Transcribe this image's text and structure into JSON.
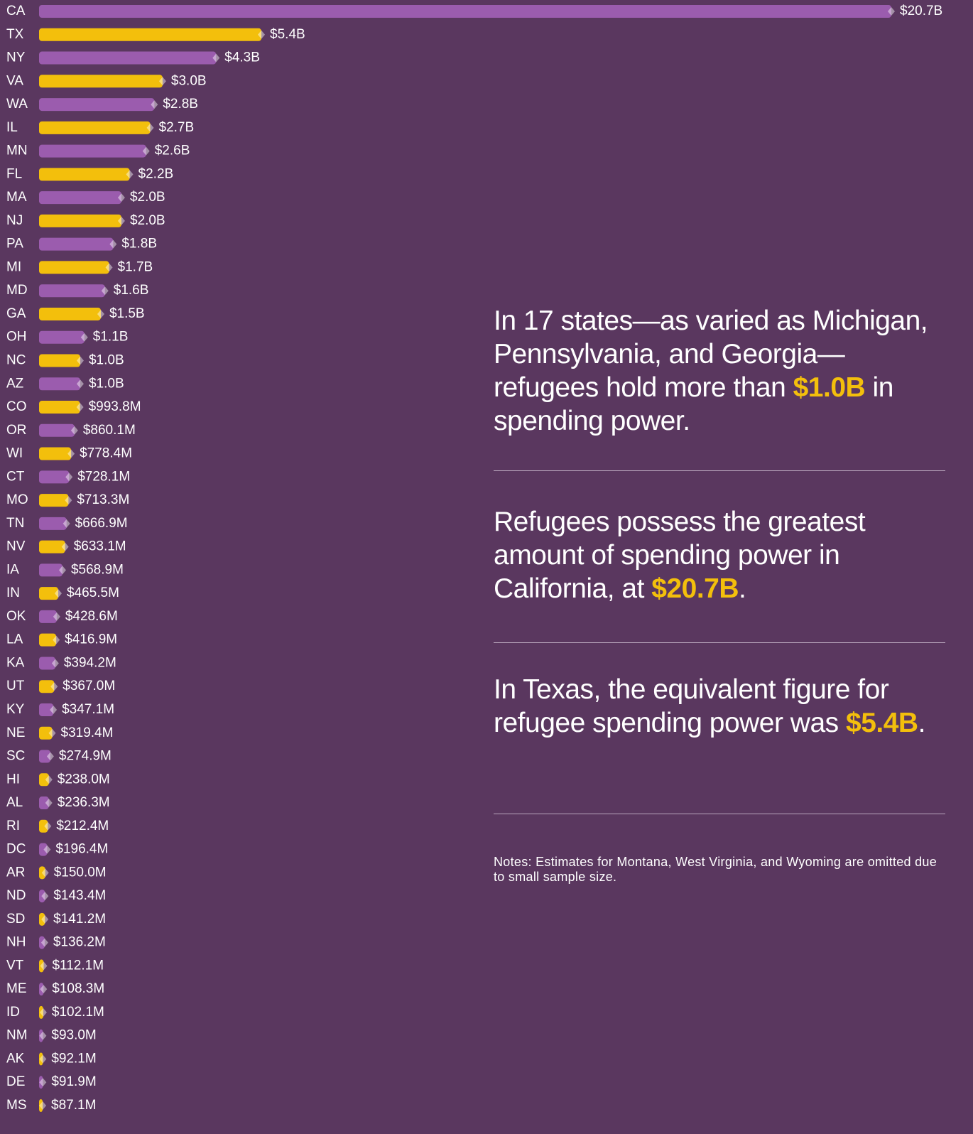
{
  "chart_data": {
    "type": "bar",
    "orientation": "horizontal",
    "categories": [
      "CA",
      "TX",
      "NY",
      "VA",
      "WA",
      "IL",
      "MN",
      "FL",
      "MA",
      "NJ",
      "PA",
      "MI",
      "MD",
      "GA",
      "OH",
      "NC",
      "AZ",
      "CO",
      "OR",
      "WI",
      "CT",
      "MO",
      "TN",
      "NV",
      "IA",
      "IN",
      "OK",
      "LA",
      "KA",
      "UT",
      "KY",
      "NE",
      "SC",
      "HI",
      "AL",
      "RI",
      "DC",
      "AR",
      "ND",
      "SD",
      "NH",
      "VT",
      "ME",
      "ID",
      "NM",
      "AK",
      "DE",
      "MS"
    ],
    "values": [
      20700,
      5400,
      4300,
      3000,
      2800,
      2700,
      2600,
      2200,
      2000,
      2000,
      1800,
      1700,
      1600,
      1500,
      1100,
      1000,
      1000,
      993.8,
      860.1,
      778.4,
      728.1,
      713.3,
      666.9,
      633.1,
      568.9,
      465.5,
      428.6,
      416.9,
      394.2,
      367.0,
      347.1,
      319.4,
      274.9,
      238.0,
      236.3,
      212.4,
      196.4,
      150.0,
      143.4,
      141.2,
      136.2,
      112.1,
      108.3,
      102.1,
      93.0,
      92.1,
      91.9,
      87.1
    ],
    "value_labels": [
      "$20.7B",
      "$5.4B",
      "$4.3B",
      "$3.0B",
      "$2.8B",
      "$2.7B",
      "$2.6B",
      "$2.2B",
      "$2.0B",
      "$2.0B",
      "$1.8B",
      "$1.7B",
      "$1.6B",
      "$1.5B",
      "$1.1B",
      "$1.0B",
      "$1.0B",
      "$993.8M",
      "$860.1M",
      "$778.4M",
      "$728.1M",
      "$713.3M",
      "$666.9M",
      "$633.1M",
      "$568.9M",
      "$465.5M",
      "$428.6M",
      "$416.9M",
      "$394.2M",
      "$367.0M",
      "$347.1M",
      "$319.4M",
      "$274.9M",
      "$238.0M",
      "$236.3M",
      "$212.4M",
      "$196.4M",
      "$150.0M",
      "$143.4M",
      "$141.2M",
      "$136.2M",
      "$112.1M",
      "$108.3M",
      "$102.1M",
      "$93.0M",
      "$92.1M",
      "$91.9M",
      "$87.1M"
    ],
    "colors": [
      "#9b5cae",
      "#f3bf0c"
    ]
  },
  "annotations": [
    {
      "parts": [
        "In 17 states—as varied as Michigan, Pennsylvania, and Georgia—refugees hold more than ",
        "$1.0B",
        " in spending power."
      ]
    },
    {
      "parts": [
        "Refugees possess the greatest amount of spending power in California, at ",
        "$20.7B",
        "."
      ]
    },
    {
      "parts": [
        "In Texas, the equivalent figure for refugee spending power was ",
        "$5.4B",
        "."
      ]
    }
  ],
  "notes": "Notes: Estimates for Montana, West Virginia, and Wyoming are omitted due to small sample size."
}
